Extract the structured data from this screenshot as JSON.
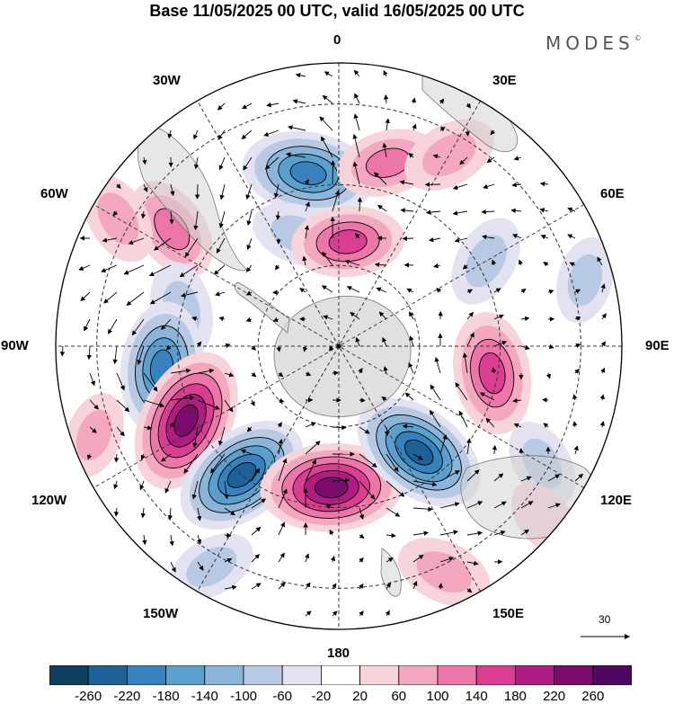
{
  "title": "Base 11/05/2025 00 UTC, valid 16/05/2025 00 UTC",
  "brand": "MODES",
  "brand_mark": "©",
  "longitude_labels": {
    "lon_0": "0",
    "lon_30e": "30E",
    "lon_60e": "60E",
    "lon_90e": "90E",
    "lon_120e": "120E",
    "lon_150e": "150E",
    "lon_180": "180",
    "lon_150w": "150W",
    "lon_120w": "120W",
    "lon_90w": "90W",
    "lon_60w": "60W",
    "lon_30w": "30W"
  },
  "reference_vector": "30",
  "colorbar": {
    "ticks": [
      "-260",
      "-220",
      "-180",
      "-140",
      "-100",
      "-60",
      "-20",
      "20",
      "60",
      "100",
      "140",
      "180",
      "220",
      "260"
    ],
    "colors": [
      "#0e3f61",
      "#1d6196",
      "#3782bc",
      "#5b9fcd",
      "#8ab4d8",
      "#b7c9e3",
      "#e3e2f0",
      "#ffffff",
      "#f7d3da",
      "#f3a8bf",
      "#ec76a7",
      "#da3e91",
      "#b01d82",
      "#7b0b6d",
      "#4e0862"
    ]
  },
  "field": {
    "description_free": true,
    "anomalies": [
      {
        "lon": 350,
        "r": 0.62,
        "value": -200
      },
      {
        "lon": 340,
        "r": 0.42,
        "value": -80
      },
      {
        "lon": 15,
        "r": 0.67,
        "value": 110
      },
      {
        "lon": 30,
        "r": 0.78,
        "value": 90
      },
      {
        "lon": 5,
        "r": 0.37,
        "value": 140
      },
      {
        "lon": 305,
        "r": 0.72,
        "value": 120
      },
      {
        "lon": 300,
        "r": 0.9,
        "value": 80
      },
      {
        "lon": 283,
        "r": 0.57,
        "value": -90
      },
      {
        "lon": 263,
        "r": 0.63,
        "value": -200
      },
      {
        "lon": 244,
        "r": 0.6,
        "value": 240
      },
      {
        "lon": 217,
        "r": 0.57,
        "value": -220
      },
      {
        "lon": 183,
        "r": 0.5,
        "value": 230
      },
      {
        "lon": 143,
        "r": 0.47,
        "value": -220
      },
      {
        "lon": 100,
        "r": 0.55,
        "value": 170
      },
      {
        "lon": 60,
        "r": 0.6,
        "value": -80
      },
      {
        "lon": 120,
        "r": 0.83,
        "value": -70
      },
      {
        "lon": 155,
        "r": 0.88,
        "value": 90
      },
      {
        "lon": 210,
        "r": 0.9,
        "value": -70
      },
      {
        "lon": 250,
        "r": 0.92,
        "value": 60
      },
      {
        "lon": 130,
        "r": 0.95,
        "value": 50
      },
      {
        "lon": 75,
        "r": 0.9,
        "value": -60
      }
    ]
  }
}
